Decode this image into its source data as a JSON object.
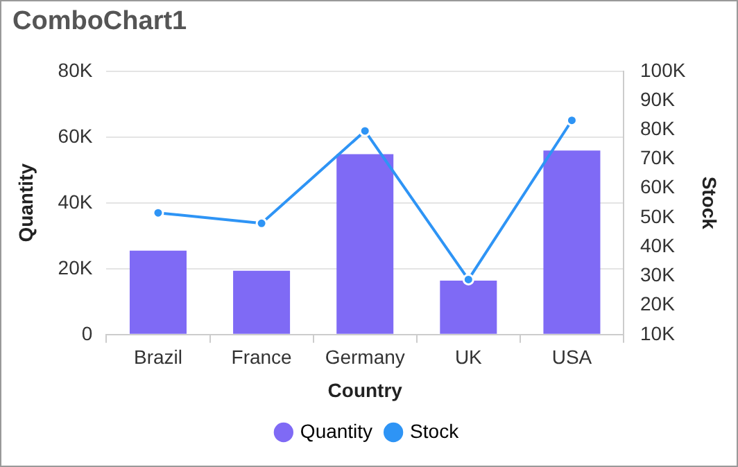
{
  "chart_data": {
    "type": "bar",
    "title": "ComboChart1",
    "xlabel": "Country",
    "ylabel": "Quantity",
    "y2label": "Stock",
    "categories": [
      "Brazil",
      "France",
      "Germany",
      "UK",
      "USA"
    ],
    "series": [
      {
        "name": "Quantity",
        "color": "#7f6af5",
        "values": [
          25500,
          19400,
          54800,
          16400,
          55900
        ]
      },
      {
        "name": "Stock",
        "type": "line",
        "axis": "y2",
        "color": "#2e94f5",
        "values": [
          51600,
          48000,
          79600,
          28800,
          83200
        ]
      }
    ],
    "ylim": [
      0,
      80000
    ],
    "yticks": [
      {
        "value": 0,
        "label": "0"
      },
      {
        "value": 20000,
        "label": "20K"
      },
      {
        "value": 40000,
        "label": "40K"
      },
      {
        "value": 60000,
        "label": "60K"
      },
      {
        "value": 80000,
        "label": "80K"
      }
    ],
    "y2lim": [
      10000,
      100000
    ],
    "y2ticks": [
      {
        "value": 10000,
        "label": "10K"
      },
      {
        "value": 20000,
        "label": "20K"
      },
      {
        "value": 30000,
        "label": "30K"
      },
      {
        "value": 40000,
        "label": "40K"
      },
      {
        "value": 50000,
        "label": "50K"
      },
      {
        "value": 60000,
        "label": "60K"
      },
      {
        "value": 70000,
        "label": "70K"
      },
      {
        "value": 80000,
        "label": "80K"
      },
      {
        "value": 90000,
        "label": "90K"
      },
      {
        "value": 100000,
        "label": "100K"
      }
    ],
    "grid": "y",
    "legend": "bottom",
    "marker": "circle",
    "line_style": "solid"
  }
}
